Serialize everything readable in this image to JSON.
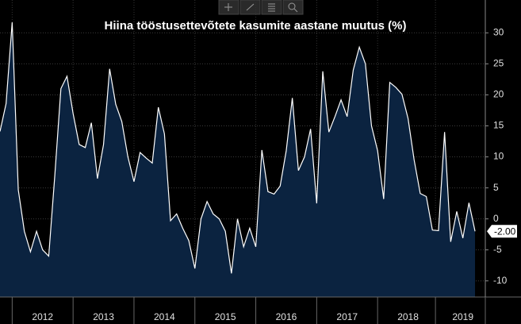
{
  "chart_data": {
    "type": "area",
    "title": "Hiina tööstusettevõtete kasumite aastane muutus (%)",
    "categories": [
      null,
      null,
      null,
      null,
      null,
      null,
      null,
      "2012",
      null,
      null,
      null,
      null,
      null,
      null,
      null,
      null,
      null,
      "2013",
      null,
      null,
      null,
      null,
      null,
      null,
      null,
      null,
      null,
      "2014",
      null,
      null,
      null,
      null,
      null,
      null,
      null,
      null,
      null,
      "2015",
      null,
      null,
      null,
      null,
      null,
      null,
      null,
      null,
      null,
      "2016",
      null,
      null,
      null,
      null,
      null,
      null,
      null,
      null,
      null,
      "2017",
      null,
      null,
      null,
      null,
      null,
      null,
      null,
      null,
      null,
      "2018",
      null,
      null,
      null,
      null,
      null,
      null,
      null,
      null,
      "2019",
      null,
      null
    ],
    "values": [
      14.1,
      18.6,
      31.7,
      4.7,
      -2,
      -5.3,
      -2,
      -5,
      -6,
      7,
      21,
      23,
      17,
      12,
      11.5,
      15.5,
      6.5,
      12,
      24.2,
      18.5,
      15.7,
      10,
      6,
      10.7,
      9.8,
      9,
      18,
      13.7,
      -0.3,
      0.8,
      -1.5,
      -3.5,
      -8,
      0,
      2.8,
      0.8,
      0,
      -2,
      -8.8,
      0,
      -4.5,
      -1.5,
      -4.5,
      11.1,
      4.4,
      4,
      5.3,
      11,
      19.5,
      7.8,
      10,
      14.5,
      2.5,
      23.8,
      14,
      16.5,
      19.2,
      16.5,
      24,
      27.7,
      25,
      15,
      11,
      3.2,
      22,
      21.2,
      20.1,
      16.2,
      9.5,
      4.1,
      3.6,
      -1.8,
      -1.9,
      14,
      -3.7,
      1.2,
      -3.1,
      2.6,
      -2.0
    ],
    "value_labels": [
      null,
      null,
      null,
      null,
      null,
      null,
      null,
      null,
      null,
      null,
      null,
      null,
      null,
      null,
      null,
      null,
      null,
      null,
      null,
      null,
      null,
      null,
      null,
      null,
      null,
      null,
      null,
      null,
      null,
      null,
      null,
      null,
      null,
      null,
      null,
      null,
      null,
      null,
      null,
      null,
      null,
      null,
      null,
      null,
      null,
      null,
      null,
      null,
      null,
      null,
      null,
      null,
      null,
      null,
      null,
      null,
      null,
      null,
      null,
      null,
      null,
      null,
      null,
      null,
      null,
      null,
      null,
      null,
      null,
      null,
      null,
      null,
      null,
      null,
      null,
      null,
      null,
      null,
      "-2.00"
    ],
    "line_color": "#ffffff",
    "fill_color": "#0b2340",
    "ylim": [
      -12.6,
      35.3
    ],
    "yticks": [
      -10,
      -5,
      0,
      5,
      10,
      15,
      20,
      25,
      30
    ],
    "grid": true
  }
}
